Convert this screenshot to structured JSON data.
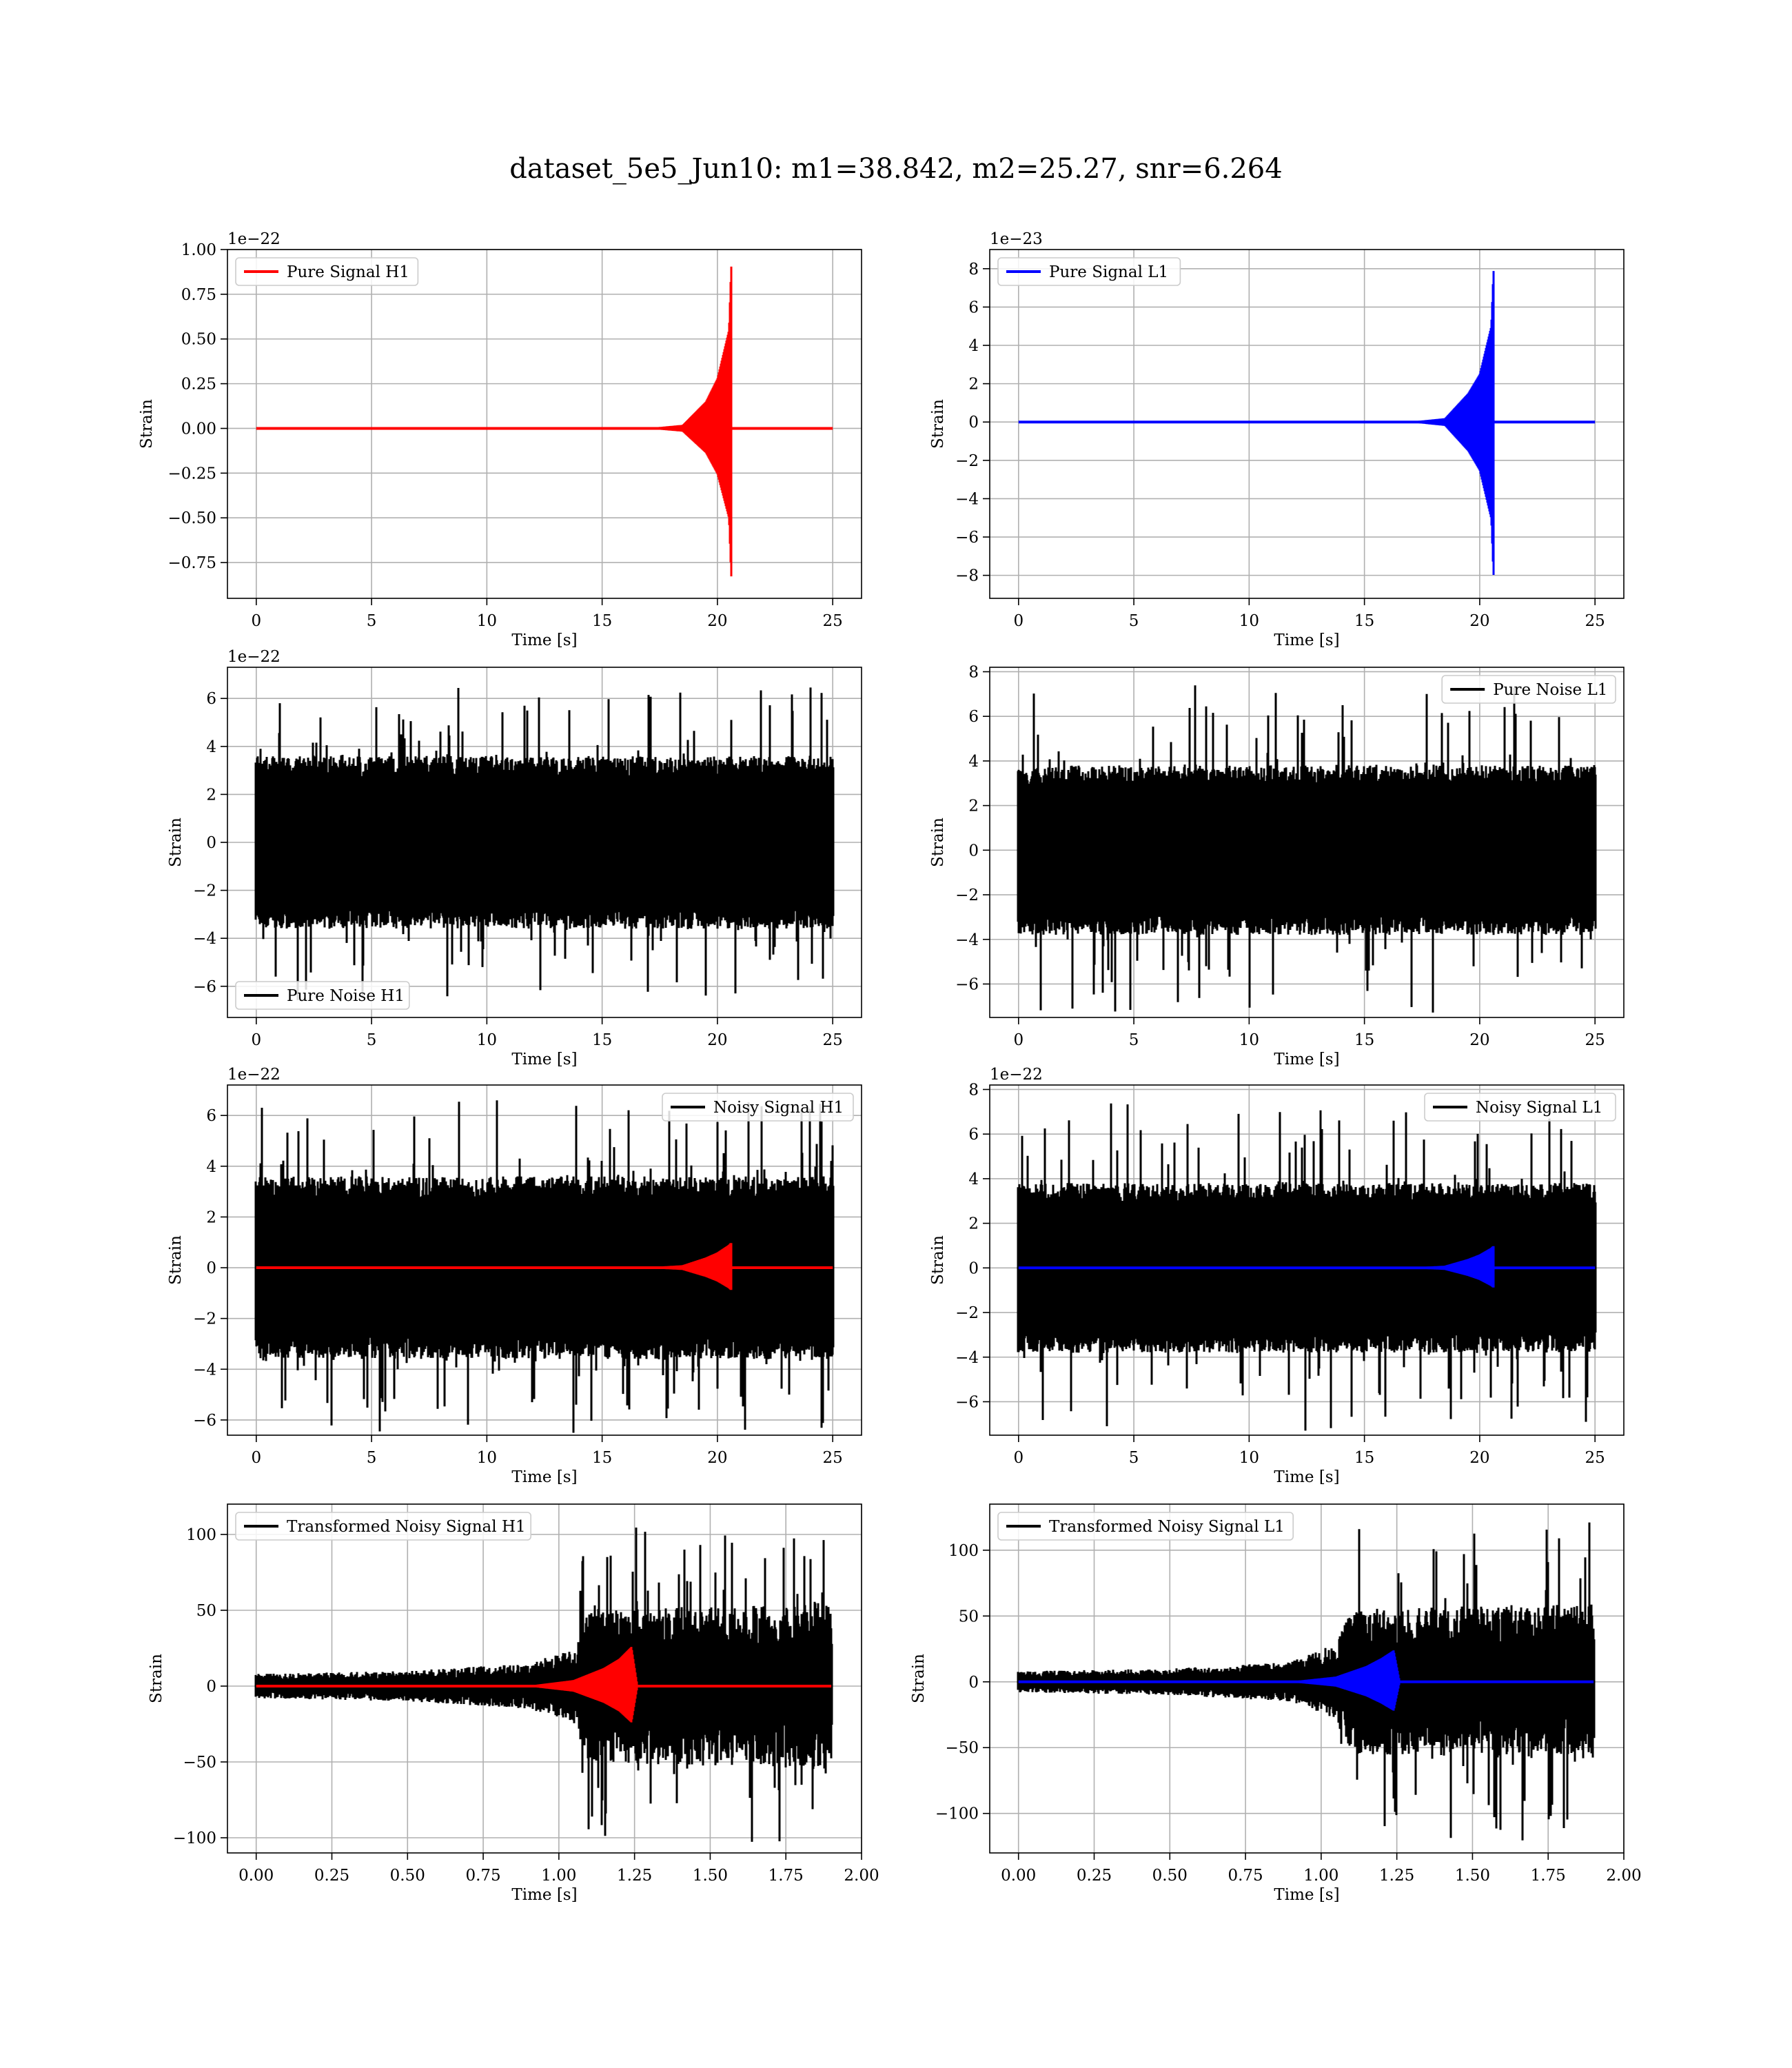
{
  "figure": {
    "title": "dataset_5e5_Jun10: m1=38.842, m2=25.27, snr=6.264"
  },
  "chart_data": [
    {
      "id": "pure-signal-h1",
      "type": "line",
      "xlabel": "Time [s]",
      "ylabel": "Strain",
      "offset_text": "1e−22",
      "xlim": [
        -1.25,
        26.25
      ],
      "ylim": [
        -0.95,
        1.0
      ],
      "xticks": [
        0,
        5,
        10,
        15,
        20,
        25
      ],
      "xtick_labels": [
        "0",
        "5",
        "10",
        "15",
        "20",
        "25"
      ],
      "yticks": [
        1.0,
        0.75,
        0.5,
        0.25,
        0.0,
        -0.25,
        -0.5,
        -0.75
      ],
      "ytick_labels": [
        "1.00",
        "0.75",
        "0.50",
        "0.25",
        "0.00",
        "−0.25",
        "−0.50",
        "−0.75"
      ],
      "legend": {
        "loc": "upper-left",
        "entries": [
          {
            "label": "Pure Signal H1",
            "color": "#ff0000"
          }
        ]
      },
      "series": [
        {
          "name": "Pure Signal H1",
          "color": "#ff0000",
          "kind": "chirp",
          "x_range": [
            0,
            25
          ],
          "t_merger": 20.6,
          "envelope": [
            [
              0,
              0.0
            ],
            [
              17,
              0.002
            ],
            [
              18.5,
              0.02
            ],
            [
              19.5,
              0.15
            ],
            [
              20.0,
              0.28
            ],
            [
              20.5,
              0.55
            ],
            [
              20.6,
              0.93
            ],
            [
              20.62,
              0.0
            ],
            [
              25,
              0.0
            ]
          ],
          "neg_envelope_peak": -0.85
        }
      ]
    },
    {
      "id": "pure-signal-l1",
      "type": "line",
      "xlabel": "Time [s]",
      "ylabel": "Strain",
      "offset_text": "1e−23",
      "xlim": [
        -1.25,
        26.25
      ],
      "ylim": [
        -9.2,
        9.0
      ],
      "xticks": [
        0,
        5,
        10,
        15,
        20,
        25
      ],
      "xtick_labels": [
        "0",
        "5",
        "10",
        "15",
        "20",
        "25"
      ],
      "yticks": [
        8,
        6,
        4,
        2,
        0,
        -2,
        -4,
        -6,
        -8
      ],
      "ytick_labels": [
        "8",
        "6",
        "4",
        "2",
        "0",
        "−2",
        "−4",
        "−6",
        "−8"
      ],
      "legend": {
        "loc": "upper-left",
        "entries": [
          {
            "label": "Pure Signal L1",
            "color": "#0000ff"
          }
        ]
      },
      "series": [
        {
          "name": "Pure Signal L1",
          "color": "#0000ff",
          "kind": "chirp",
          "x_range": [
            0,
            25
          ],
          "t_merger": 20.6,
          "envelope": [
            [
              0,
              0.0
            ],
            [
              17,
              0.02
            ],
            [
              18.5,
              0.2
            ],
            [
              19.5,
              1.5
            ],
            [
              20.0,
              2.5
            ],
            [
              20.5,
              5.0
            ],
            [
              20.6,
              8.1
            ],
            [
              20.62,
              0.0
            ],
            [
              25,
              0.0
            ]
          ],
          "neg_envelope_peak": -8.2
        }
      ]
    },
    {
      "id": "pure-noise-h1",
      "type": "line",
      "xlabel": "Time [s]",
      "ylabel": "Strain",
      "offset_text": "1e−22",
      "xlim": [
        -1.25,
        26.25
      ],
      "ylim": [
        -7.3,
        7.3
      ],
      "xticks": [
        0,
        5,
        10,
        15,
        20,
        25
      ],
      "xtick_labels": [
        "0",
        "5",
        "10",
        "15",
        "20",
        "25"
      ],
      "yticks": [
        6,
        4,
        2,
        0,
        -2,
        -4,
        -6
      ],
      "ytick_labels": [
        "6",
        "4",
        "2",
        "0",
        "−2",
        "−4",
        "−6"
      ],
      "legend": {
        "loc": "lower-left",
        "entries": [
          {
            "label": "Pure Noise H1",
            "color": "#000000"
          }
        ]
      },
      "series": [
        {
          "name": "Pure Noise H1",
          "color": "#000000",
          "kind": "noise",
          "x_range": [
            0,
            25
          ],
          "band": 3.6,
          "spike_max": 6.6
        }
      ]
    },
    {
      "id": "pure-noise-l1",
      "type": "line",
      "xlabel": "Time [s]",
      "ylabel": "Strain",
      "offset_text": "",
      "xlim": [
        -1.25,
        26.25
      ],
      "ylim": [
        -7.5,
        8.2
      ],
      "xticks": [
        0,
        5,
        10,
        15,
        20,
        25
      ],
      "xtick_labels": [
        "0",
        "5",
        "10",
        "15",
        "20",
        "25"
      ],
      "yticks": [
        8,
        6,
        4,
        2,
        0,
        -2,
        -4,
        -6
      ],
      "ytick_labels": [
        "8",
        "6",
        "4",
        "2",
        "0",
        "−2",
        "−4",
        "−6"
      ],
      "legend": {
        "loc": "upper-right",
        "entries": [
          {
            "label": "Pure Noise L1",
            "color": "#000000"
          }
        ]
      },
      "series": [
        {
          "name": "Pure Noise L1",
          "color": "#000000",
          "kind": "noise",
          "x_range": [
            0,
            25
          ],
          "band": 3.8,
          "spike_max": 7.4
        }
      ]
    },
    {
      "id": "noisy-signal-h1",
      "type": "line",
      "xlabel": "Time [s]",
      "ylabel": "Strain",
      "offset_text": "1e−22",
      "xlim": [
        -1.25,
        26.25
      ],
      "ylim": [
        -6.6,
        7.2
      ],
      "xticks": [
        0,
        5,
        10,
        15,
        20,
        25
      ],
      "xtick_labels": [
        "0",
        "5",
        "10",
        "15",
        "20",
        "25"
      ],
      "yticks": [
        6,
        4,
        2,
        0,
        -2,
        -4,
        -6
      ],
      "ytick_labels": [
        "6",
        "4",
        "2",
        "0",
        "−2",
        "−4",
        "−6"
      ],
      "legend": {
        "loc": "upper-right",
        "entries": [
          {
            "label": "Noisy Signal H1",
            "color": "#000000"
          }
        ]
      },
      "series": [
        {
          "name": "Noisy Signal H1",
          "color": "#000000",
          "kind": "noise",
          "x_range": [
            0,
            25
          ],
          "band": 3.6,
          "spike_max": 6.6
        },
        {
          "name": "",
          "color": "#ff0000",
          "kind": "chirp",
          "x_range": [
            0,
            25
          ],
          "t_merger": 20.6,
          "envelope": [
            [
              0,
              0.0
            ],
            [
              17,
              0.02
            ],
            [
              18.5,
              0.1
            ],
            [
              19.5,
              0.4
            ],
            [
              20.0,
              0.6
            ],
            [
              20.5,
              0.9
            ],
            [
              20.6,
              1.0
            ],
            [
              20.62,
              0.0
            ],
            [
              25,
              0.0
            ]
          ],
          "neg_envelope_peak": -0.9
        }
      ]
    },
    {
      "id": "noisy-signal-l1",
      "type": "line",
      "xlabel": "Time [s]",
      "ylabel": "Strain",
      "offset_text": "1e−22",
      "xlim": [
        -1.25,
        26.25
      ],
      "ylim": [
        -7.5,
        8.2
      ],
      "xticks": [
        0,
        5,
        10,
        15,
        20,
        25
      ],
      "xtick_labels": [
        "0",
        "5",
        "10",
        "15",
        "20",
        "25"
      ],
      "yticks": [
        8,
        6,
        4,
        2,
        0,
        -2,
        -4,
        -6
      ],
      "ytick_labels": [
        "8",
        "6",
        "4",
        "2",
        "0",
        "−2",
        "−4",
        "−6"
      ],
      "legend": {
        "loc": "upper-right",
        "entries": [
          {
            "label": "Noisy Signal L1",
            "color": "#000000"
          }
        ]
      },
      "series": [
        {
          "name": "Noisy Signal L1",
          "color": "#000000",
          "kind": "noise",
          "x_range": [
            0,
            25
          ],
          "band": 3.8,
          "spike_max": 7.4
        },
        {
          "name": "",
          "color": "#0000ff",
          "kind": "chirp",
          "x_range": [
            0,
            25
          ],
          "t_merger": 20.6,
          "envelope": [
            [
              0,
              0.0
            ],
            [
              17,
              0.02
            ],
            [
              18.5,
              0.1
            ],
            [
              19.5,
              0.4
            ],
            [
              20.0,
              0.6
            ],
            [
              20.5,
              0.9
            ],
            [
              20.6,
              1.0
            ],
            [
              20.62,
              0.0
            ],
            [
              25,
              0.0
            ]
          ],
          "neg_envelope_peak": -0.9
        }
      ]
    },
    {
      "id": "transformed-noisy-signal-h1",
      "type": "line",
      "xlabel": "Time [s]",
      "ylabel": "Strain",
      "offset_text": "",
      "xlim": [
        -0.095,
        2.0
      ],
      "ylim": [
        -110,
        120
      ],
      "xticks": [
        0.0,
        0.25,
        0.5,
        0.75,
        1.0,
        1.25,
        1.5,
        1.75,
        2.0
      ],
      "xtick_labels": [
        "0.00",
        "0.25",
        "0.50",
        "0.75",
        "1.00",
        "1.25",
        "1.50",
        "1.75",
        "2.00"
      ],
      "yticks": [
        100,
        50,
        0,
        -50,
        -100
      ],
      "ytick_labels": [
        "100",
        "50",
        "0",
        "−50",
        "−100"
      ],
      "legend": {
        "loc": "upper-left",
        "entries": [
          {
            "label": "Transformed Noisy Signal H1",
            "color": "#000000"
          }
        ]
      },
      "series": [
        {
          "name": "Transformed Noisy Signal H1",
          "color": "#000000",
          "kind": "growing-noise",
          "x_range": [
            0,
            1.9
          ],
          "envelope": [
            [
              0,
              8
            ],
            [
              0.5,
              10
            ],
            [
              0.9,
              15
            ],
            [
              1.05,
              25
            ],
            [
              1.1,
              50
            ],
            [
              1.9,
              55
            ]
          ],
          "spike_max": 105
        },
        {
          "name": "",
          "color": "#ff0000",
          "kind": "chirp",
          "x_range": [
            0,
            1.9
          ],
          "t_merger": 1.24,
          "envelope": [
            [
              0,
              0.0
            ],
            [
              0.9,
              0.3
            ],
            [
              1.05,
              4
            ],
            [
              1.15,
              12
            ],
            [
              1.2,
              18
            ],
            [
              1.24,
              26
            ],
            [
              1.26,
              0.0
            ],
            [
              1.9,
              0.0
            ]
          ],
          "neg_envelope_peak": -24
        }
      ]
    },
    {
      "id": "transformed-noisy-signal-l1",
      "type": "line",
      "xlabel": "Time [s]",
      "ylabel": "Strain",
      "offset_text": "",
      "xlim": [
        -0.095,
        2.0
      ],
      "ylim": [
        -130,
        135
      ],
      "xticks": [
        0.0,
        0.25,
        0.5,
        0.75,
        1.0,
        1.25,
        1.5,
        1.75,
        2.0
      ],
      "xtick_labels": [
        "0.00",
        "0.25",
        "0.50",
        "0.75",
        "1.00",
        "1.25",
        "1.50",
        "1.75",
        "2.00"
      ],
      "yticks": [
        100,
        50,
        0,
        -50,
        -100
      ],
      "ytick_labels": [
        "100",
        "50",
        "0",
        "−50",
        "−100"
      ],
      "legend": {
        "loc": "upper-left",
        "entries": [
          {
            "label": "Transformed Noisy Signal L1",
            "color": "#000000"
          }
        ]
      },
      "series": [
        {
          "name": "Transformed Noisy Signal L1",
          "color": "#000000",
          "kind": "growing-noise",
          "x_range": [
            0,
            1.9
          ],
          "envelope": [
            [
              0,
              8
            ],
            [
              0.5,
              10
            ],
            [
              0.9,
              15
            ],
            [
              1.05,
              30
            ],
            [
              1.1,
              55
            ],
            [
              1.9,
              60
            ]
          ],
          "spike_max": 125
        },
        {
          "name": "",
          "color": "#0000ff",
          "kind": "chirp",
          "x_range": [
            0,
            1.9
          ],
          "t_merger": 1.24,
          "envelope": [
            [
              0,
              0.0
            ],
            [
              0.9,
              0.3
            ],
            [
              1.05,
              4
            ],
            [
              1.15,
              12
            ],
            [
              1.2,
              18
            ],
            [
              1.24,
              24
            ],
            [
              1.26,
              0.0
            ],
            [
              1.9,
              0.0
            ]
          ],
          "neg_envelope_peak": -22
        }
      ]
    }
  ]
}
